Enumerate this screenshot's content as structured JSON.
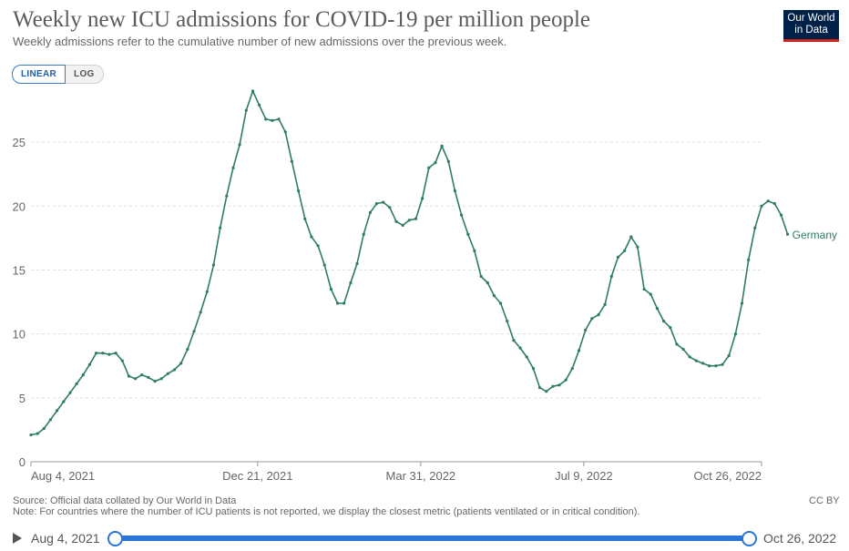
{
  "header": {
    "title": "Weekly new ICU admissions for COVID-19 per million people",
    "subtitle": "Weekly admissions refer to the cumulative number of new admissions over the previous week.",
    "logo_line1": "Our World",
    "logo_line2": "in Data"
  },
  "scale_toggle": {
    "linear": "LINEAR",
    "log": "LOG",
    "selected": "LINEAR"
  },
  "footer": {
    "source": "Source: Official data collated by Our World in Data",
    "note": "Note: For countries where the number of ICU patients is not reported, we display the closest metric (patients ventilated or in critical condition).",
    "license": "CC BY"
  },
  "timeline": {
    "start": "Aug 4, 2021",
    "end": "Oct 26, 2022"
  },
  "colors": {
    "series": "#2e7d5e",
    "grid": "#dddddd",
    "axis": "#666666",
    "accent": "#2876d8"
  },
  "chart_data": {
    "type": "line",
    "title": "Weekly new ICU admissions for COVID-19 per million people",
    "xlabel": "",
    "ylabel": "",
    "x_range": [
      "2021-08-04",
      "2022-10-26"
    ],
    "ylim": [
      0,
      29
    ],
    "yticks": [
      0,
      5,
      10,
      15,
      20,
      25
    ],
    "xticks": [
      "Aug 4, 2021",
      "Dec 21, 2021",
      "Mar 31, 2022",
      "Jul 9, 2022",
      "Oct 26, 2022"
    ],
    "grid": true,
    "series": [
      {
        "name": "Germany",
        "points": [
          [
            "2021-08-04",
            2.1
          ],
          [
            "2021-08-08",
            2.2
          ],
          [
            "2021-08-12",
            2.6
          ],
          [
            "2021-08-16",
            3.3
          ],
          [
            "2021-08-20",
            4.0
          ],
          [
            "2021-08-24",
            4.7
          ],
          [
            "2021-08-28",
            5.4
          ],
          [
            "2021-09-01",
            6.1
          ],
          [
            "2021-09-05",
            6.8
          ],
          [
            "2021-09-09",
            7.6
          ],
          [
            "2021-09-13",
            8.5
          ],
          [
            "2021-09-17",
            8.5
          ],
          [
            "2021-09-21",
            8.4
          ],
          [
            "2021-09-25",
            8.5
          ],
          [
            "2021-09-29",
            7.9
          ],
          [
            "2021-10-03",
            6.7
          ],
          [
            "2021-10-07",
            6.5
          ],
          [
            "2021-10-11",
            6.8
          ],
          [
            "2021-10-15",
            6.6
          ],
          [
            "2021-10-19",
            6.3
          ],
          [
            "2021-10-23",
            6.5
          ],
          [
            "2021-10-27",
            6.9
          ],
          [
            "2021-10-31",
            7.2
          ],
          [
            "2021-11-04",
            7.7
          ],
          [
            "2021-11-08",
            8.8
          ],
          [
            "2021-11-12",
            10.2
          ],
          [
            "2021-11-16",
            11.7
          ],
          [
            "2021-11-20",
            13.3
          ],
          [
            "2021-11-24",
            15.4
          ],
          [
            "2021-11-28",
            18.3
          ],
          [
            "2021-12-02",
            20.8
          ],
          [
            "2021-12-06",
            23.0
          ],
          [
            "2021-12-10",
            24.8
          ],
          [
            "2021-12-14",
            27.5
          ],
          [
            "2021-12-18",
            29.0
          ],
          [
            "2021-12-22",
            27.9
          ],
          [
            "2021-12-26",
            26.8
          ],
          [
            "2021-12-30",
            26.7
          ],
          [
            "2022-01-03",
            26.8
          ],
          [
            "2022-01-07",
            25.8
          ],
          [
            "2022-01-11",
            23.5
          ],
          [
            "2022-01-15",
            21.2
          ],
          [
            "2022-01-19",
            19.0
          ],
          [
            "2022-01-23",
            17.6
          ],
          [
            "2022-01-27",
            16.9
          ],
          [
            "2022-01-31",
            15.4
          ],
          [
            "2022-02-04",
            13.5
          ],
          [
            "2022-02-08",
            12.4
          ],
          [
            "2022-02-12",
            12.4
          ],
          [
            "2022-02-16",
            14.0
          ],
          [
            "2022-02-20",
            15.5
          ],
          [
            "2022-02-24",
            17.8
          ],
          [
            "2022-02-28",
            19.5
          ],
          [
            "2022-03-04",
            20.2
          ],
          [
            "2022-03-08",
            20.3
          ],
          [
            "2022-03-12",
            19.9
          ],
          [
            "2022-03-16",
            18.8
          ],
          [
            "2022-03-20",
            18.5
          ],
          [
            "2022-03-24",
            18.9
          ],
          [
            "2022-03-28",
            19.0
          ],
          [
            "2022-04-01",
            20.6
          ],
          [
            "2022-04-05",
            23.0
          ],
          [
            "2022-04-09",
            23.4
          ],
          [
            "2022-04-13",
            24.7
          ],
          [
            "2022-04-17",
            23.5
          ],
          [
            "2022-04-21",
            21.2
          ],
          [
            "2022-04-25",
            19.3
          ],
          [
            "2022-04-29",
            17.8
          ],
          [
            "2022-05-03",
            16.5
          ],
          [
            "2022-05-07",
            14.5
          ],
          [
            "2022-05-11",
            14.0
          ],
          [
            "2022-05-15",
            13.0
          ],
          [
            "2022-05-19",
            12.4
          ],
          [
            "2022-05-23",
            11.0
          ],
          [
            "2022-05-27",
            9.5
          ],
          [
            "2022-05-31",
            8.9
          ],
          [
            "2022-06-04",
            8.2
          ],
          [
            "2022-06-08",
            7.3
          ],
          [
            "2022-06-12",
            5.8
          ],
          [
            "2022-06-16",
            5.5
          ],
          [
            "2022-06-20",
            5.9
          ],
          [
            "2022-06-24",
            6.0
          ],
          [
            "2022-06-28",
            6.4
          ],
          [
            "2022-07-02",
            7.3
          ],
          [
            "2022-07-06",
            8.7
          ],
          [
            "2022-07-10",
            10.3
          ],
          [
            "2022-07-14",
            11.2
          ],
          [
            "2022-07-18",
            11.5
          ],
          [
            "2022-07-22",
            12.3
          ],
          [
            "2022-07-26",
            14.5
          ],
          [
            "2022-07-30",
            16.0
          ],
          [
            "2022-08-03",
            16.5
          ],
          [
            "2022-08-07",
            17.6
          ],
          [
            "2022-08-11",
            16.8
          ],
          [
            "2022-08-15",
            13.5
          ],
          [
            "2022-08-19",
            13.1
          ],
          [
            "2022-08-23",
            12.0
          ],
          [
            "2022-08-27",
            11.0
          ],
          [
            "2022-08-31",
            10.5
          ],
          [
            "2022-09-04",
            9.2
          ],
          [
            "2022-09-08",
            8.8
          ],
          [
            "2022-09-12",
            8.2
          ],
          [
            "2022-09-16",
            7.9
          ],
          [
            "2022-09-20",
            7.7
          ],
          [
            "2022-09-24",
            7.5
          ],
          [
            "2022-09-28",
            7.5
          ],
          [
            "2022-10-02",
            7.6
          ],
          [
            "2022-10-06",
            8.3
          ],
          [
            "2022-10-10",
            10.0
          ],
          [
            "2022-10-14",
            12.4
          ],
          [
            "2022-10-18",
            15.8
          ],
          [
            "2022-10-22",
            18.3
          ],
          [
            "2022-10-26",
            20.0
          ],
          [
            "2022-10-30",
            20.4
          ],
          [
            "2022-11-03",
            20.2
          ],
          [
            "2022-11-07",
            19.3
          ],
          [
            "2022-11-11",
            17.8
          ]
        ]
      }
    ]
  }
}
